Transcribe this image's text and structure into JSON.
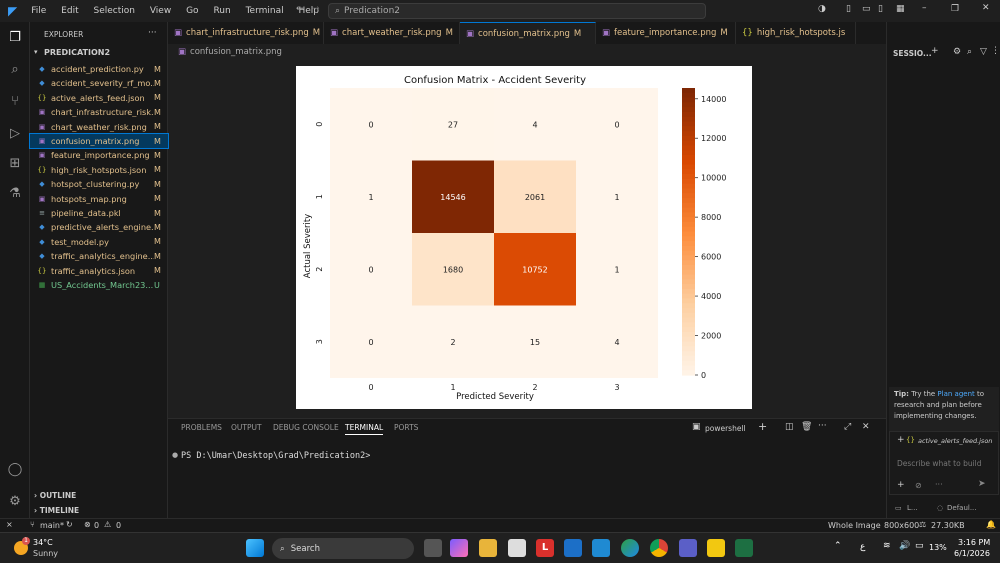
{
  "menu": [
    "File",
    "Edit",
    "Selection",
    "View",
    "Go",
    "Run",
    "Terminal",
    "Help"
  ],
  "search_text": "Predication2",
  "explorer": {
    "header": "EXPLORER",
    "root": "PREDICATION2",
    "files": [
      {
        "icon": "py",
        "name": "accident_prediction.py",
        "status": "M"
      },
      {
        "icon": "py",
        "name": "accident_severity_rf_mo...",
        "status": "M"
      },
      {
        "icon": "json",
        "name": "active_alerts_feed.json",
        "status": "M"
      },
      {
        "icon": "png",
        "name": "chart_infrastructure_risk...",
        "status": "M"
      },
      {
        "icon": "png",
        "name": "chart_weather_risk.png",
        "status": "M"
      },
      {
        "icon": "png",
        "name": "confusion_matrix.png",
        "status": "M"
      },
      {
        "icon": "png",
        "name": "feature_importance.png",
        "status": "M"
      },
      {
        "icon": "json",
        "name": "high_risk_hotspots.json",
        "status": "M"
      },
      {
        "icon": "py",
        "name": "hotspot_clustering.py",
        "status": "M"
      },
      {
        "icon": "png",
        "name": "hotspots_map.png",
        "status": "M"
      },
      {
        "icon": "pkl",
        "name": "pipeline_data.pkl",
        "status": "M"
      },
      {
        "icon": "py",
        "name": "predictive_alerts_engine...",
        "status": "M"
      },
      {
        "icon": "py",
        "name": "test_model.py",
        "status": "M"
      },
      {
        "icon": "py",
        "name": "traffic_analytics_engine...",
        "status": "M"
      },
      {
        "icon": "json",
        "name": "traffic_analytics.json",
        "status": "M"
      },
      {
        "icon": "csv",
        "name": "US_Accidents_March23....",
        "status": "U"
      }
    ],
    "outline": "OUTLINE",
    "timeline": "TIMELINE"
  },
  "tabs": [
    {
      "name": "chart_infrastructure_risk.png",
      "status": "M"
    },
    {
      "name": "chart_weather_risk.png",
      "status": "M"
    },
    {
      "name": "confusion_matrix.png",
      "status": "M"
    },
    {
      "name": "feature_importance.png",
      "status": "M"
    },
    {
      "name": "high_risk_hotspots.js",
      "status": ""
    }
  ],
  "breadcrumb": "confusion_matrix.png",
  "chart_data": {
    "type": "heatmap",
    "title": "Confusion Matrix - Accident Severity",
    "xlabel": "Predicted Severity",
    "ylabel": "Actual Severity",
    "x_ticks": [
      "0",
      "1",
      "2",
      "3"
    ],
    "y_ticks": [
      "0",
      "1",
      "2",
      "3"
    ],
    "values": [
      [
        0,
        27,
        4,
        0
      ],
      [
        1,
        14546,
        2061,
        1
      ],
      [
        0,
        1680,
        10752,
        1
      ],
      [
        0,
        2,
        15,
        4
      ]
    ],
    "colorbar_ticks": [
      0,
      2000,
      4000,
      6000,
      8000,
      10000,
      12000,
      14000
    ],
    "vmax": 14546,
    "colormap": "Oranges"
  },
  "panel": {
    "tabs": [
      "PROBLEMS",
      "OUTPUT",
      "DEBUG CONSOLE",
      "TERMINAL",
      "PORTS"
    ],
    "shell": "powershell",
    "prompt": "PS D:\\Umar\\Desktop\\Grad\\Predication2>"
  },
  "chat": {
    "title": "SESSIO...",
    "tip_prefix": "Tip:",
    "tip_text1": " Try the ",
    "tip_link": "Plan agent",
    "tip_text2": " to research and plan before implementing changes.",
    "attachment": "active_alerts_feed.json",
    "placeholder": "Describe what to build",
    "footer1": "L...",
    "footer2": "Defaul..."
  },
  "status": {
    "branch": "main*",
    "errors": "0",
    "warnings": "0",
    "view": "Whole Image",
    "dims": "800x600",
    "size": "27.30KB"
  },
  "taskbar": {
    "temp": "34°C",
    "weather": "Sunny",
    "search": "Search",
    "battery": "13%",
    "time": "3:16 PM",
    "date": "6/1/2026",
    "lang": "ع"
  }
}
